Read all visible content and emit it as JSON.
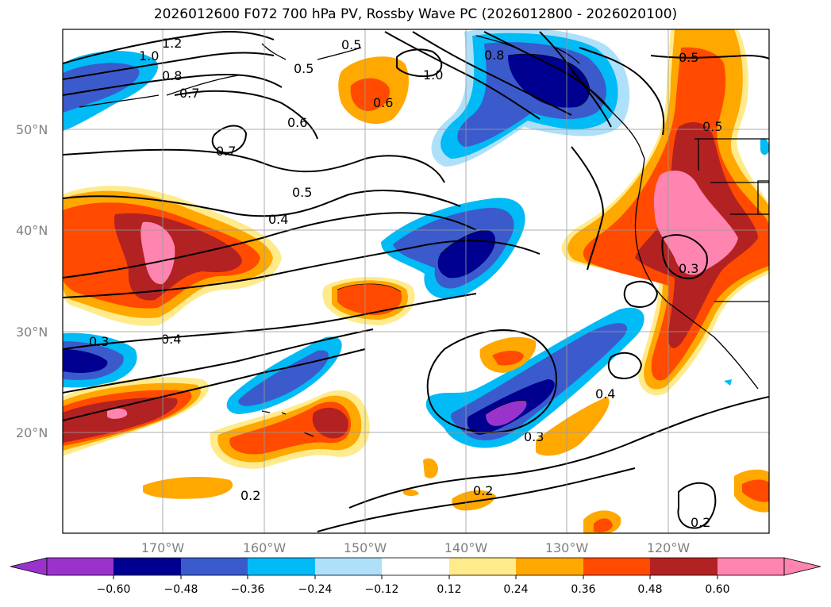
{
  "title": "2026012600 F072 700 hPa PV, Rossby Wave PC (2026012800 - 2026020100)",
  "map": {
    "lat_labels": [
      "50°N",
      "40°N",
      "30°N",
      "20°N"
    ],
    "lon_labels": [
      "170°W",
      "160°W",
      "150°W",
      "140°W",
      "130°W",
      "120°W"
    ],
    "contour_labels": [
      "1.2",
      "1.0",
      "0.8",
      "0.7",
      "0.5",
      "0.6",
      "1.0",
      "0.8",
      "0.7",
      "0.6",
      "0.5",
      "0.5",
      "0.4",
      "0.3",
      "0.4",
      "0.3",
      "0.4",
      "0.3",
      "0.2",
      "0.2",
      "0.2",
      "0.5",
      "0.5"
    ],
    "shading_colors": {
      "neg_0_60": "#9a33cc",
      "neg_0_48": "#000090",
      "neg_0_36": "#3b5bcc",
      "neg_0_24": "#00bbf5",
      "neg_0_12": "#aee0fa",
      "pos_0_12": "#ffeb8c",
      "pos_0_24": "#ffa800",
      "pos_0_36": "#ff4a00",
      "pos_0_48": "#b22222",
      "pos_0_60": "#ff85b0"
    }
  },
  "colorbar": {
    "tick_labels": [
      "−0.60",
      "−0.48",
      "−0.36",
      "−0.24",
      "−0.12",
      "0.12",
      "0.24",
      "0.36",
      "0.48",
      "0.60"
    ],
    "colors": [
      "#9a33cc",
      "#000090",
      "#3b5bcc",
      "#00bbf5",
      "#aee0fa",
      "#ffffff",
      "#ffeb8c",
      "#ffa800",
      "#ff4a00",
      "#b22222",
      "#ff85b0"
    ]
  }
}
